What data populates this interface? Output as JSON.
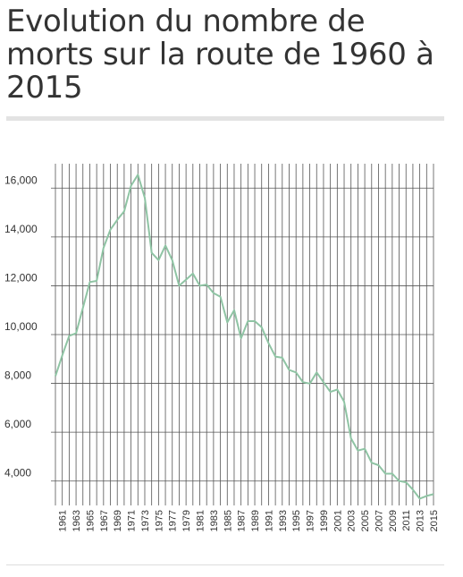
{
  "header": {
    "title": "Evolution du nombre de morts sur la route de 1960 à 2015"
  },
  "colors": {
    "line": "#8fc4a4",
    "grid": "#555555",
    "text": "#333333"
  },
  "chart_data": {
    "type": "line",
    "title": "",
    "xlabel": "",
    "ylabel": "",
    "xlim": [
      1960,
      2015
    ],
    "ylim": [
      3000,
      17000
    ],
    "grid": true,
    "yticks": [
      4000,
      6000,
      8000,
      10000,
      12000,
      14000,
      16000
    ],
    "ytick_labels": [
      "4,000",
      "6,000",
      "8,000",
      "10,000",
      "12,000",
      "14,000",
      "16,000"
    ],
    "xticks": [
      1961,
      1963,
      1965,
      1967,
      1969,
      1971,
      1973,
      1975,
      1977,
      1979,
      1981,
      1983,
      1985,
      1987,
      1989,
      1991,
      1993,
      1995,
      1997,
      1999,
      2001,
      2003,
      2005,
      2007,
      2009,
      2011,
      2013,
      2015
    ],
    "x": [
      1960,
      1961,
      1962,
      1963,
      1964,
      1965,
      1966,
      1967,
      1968,
      1969,
      1970,
      1971,
      1972,
      1973,
      1974,
      1975,
      1976,
      1977,
      1978,
      1979,
      1980,
      1981,
      1982,
      1983,
      1984,
      1985,
      1986,
      1987,
      1988,
      1989,
      1990,
      1991,
      1992,
      1993,
      1994,
      1995,
      1996,
      1997,
      1998,
      1999,
      2000,
      2001,
      2002,
      2003,
      2004,
      2005,
      2006,
      2007,
      2008,
      2009,
      2010,
      2011,
      2012,
      2013,
      2014,
      2015
    ],
    "series": [
      {
        "values": [
          8300,
          9150,
          9950,
          10050,
          11100,
          12150,
          12200,
          13550,
          14300,
          14700,
          15050,
          16100,
          16550,
          15600,
          13350,
          13050,
          13650,
          13050,
          12000,
          12250,
          12500,
          12000,
          12050,
          11700,
          11550,
          10500,
          11000,
          9850,
          10550,
          10550,
          10300,
          9650,
          9100,
          9050,
          8550,
          8450,
          8050,
          7990,
          8450,
          8050,
          7650,
          7750,
          7250,
          5750,
          5250,
          5320,
          4750,
          4650,
          4300,
          4300,
          4000,
          3950,
          3650,
          3280,
          3390,
          3460
        ]
      }
    ]
  }
}
